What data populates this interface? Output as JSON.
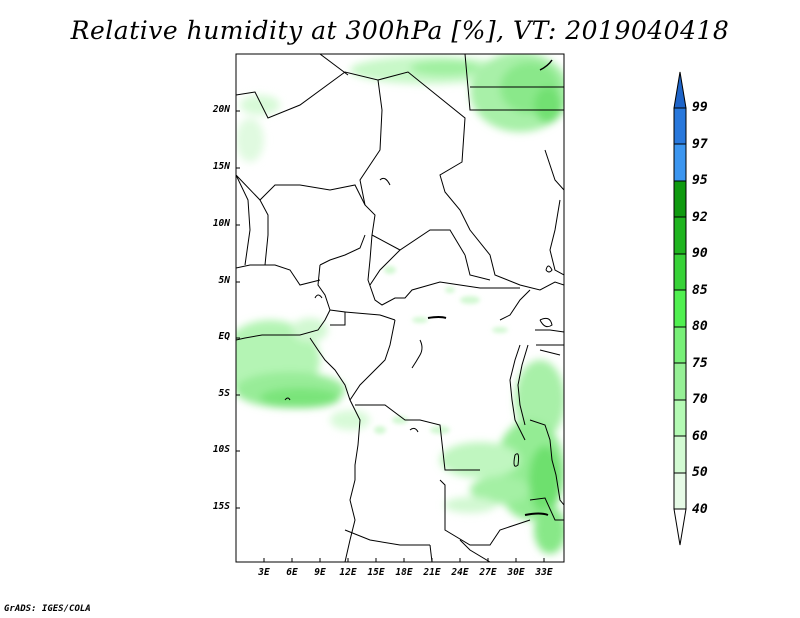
{
  "title": "Relative humidity at 300hPa [%], VT: 2019040418",
  "footer": "GrADS: IGES/COLA",
  "map": {
    "lat_labels": [
      "20N",
      "15N",
      "10N",
      "5N",
      "EQ",
      "5S",
      "10S",
      "15S"
    ],
    "lon_labels": [
      "3E",
      "6E",
      "9E",
      "12E",
      "15E",
      "18E",
      "21E",
      "24E",
      "27E",
      "30E",
      "33E"
    ]
  },
  "colorbar": {
    "labels": [
      "99",
      "97",
      "95",
      "92",
      "90",
      "85",
      "80",
      "75",
      "70",
      "60",
      "50",
      "40"
    ],
    "colors": {
      "above_99": "#1e64c8",
      "97_99": "#2878dc",
      "95_97": "#3c96f0",
      "92_95": "#0f9a0f",
      "90_92": "#1eb41e",
      "85_90": "#37d237",
      "80_85": "#50f050",
      "75_80": "#78f078",
      "70_75": "#96f096",
      "60_70": "#b4fab4",
      "50_60": "#d2fad2",
      "40_50": "#e6fae6",
      "below_40": "#ffffff"
    }
  }
}
